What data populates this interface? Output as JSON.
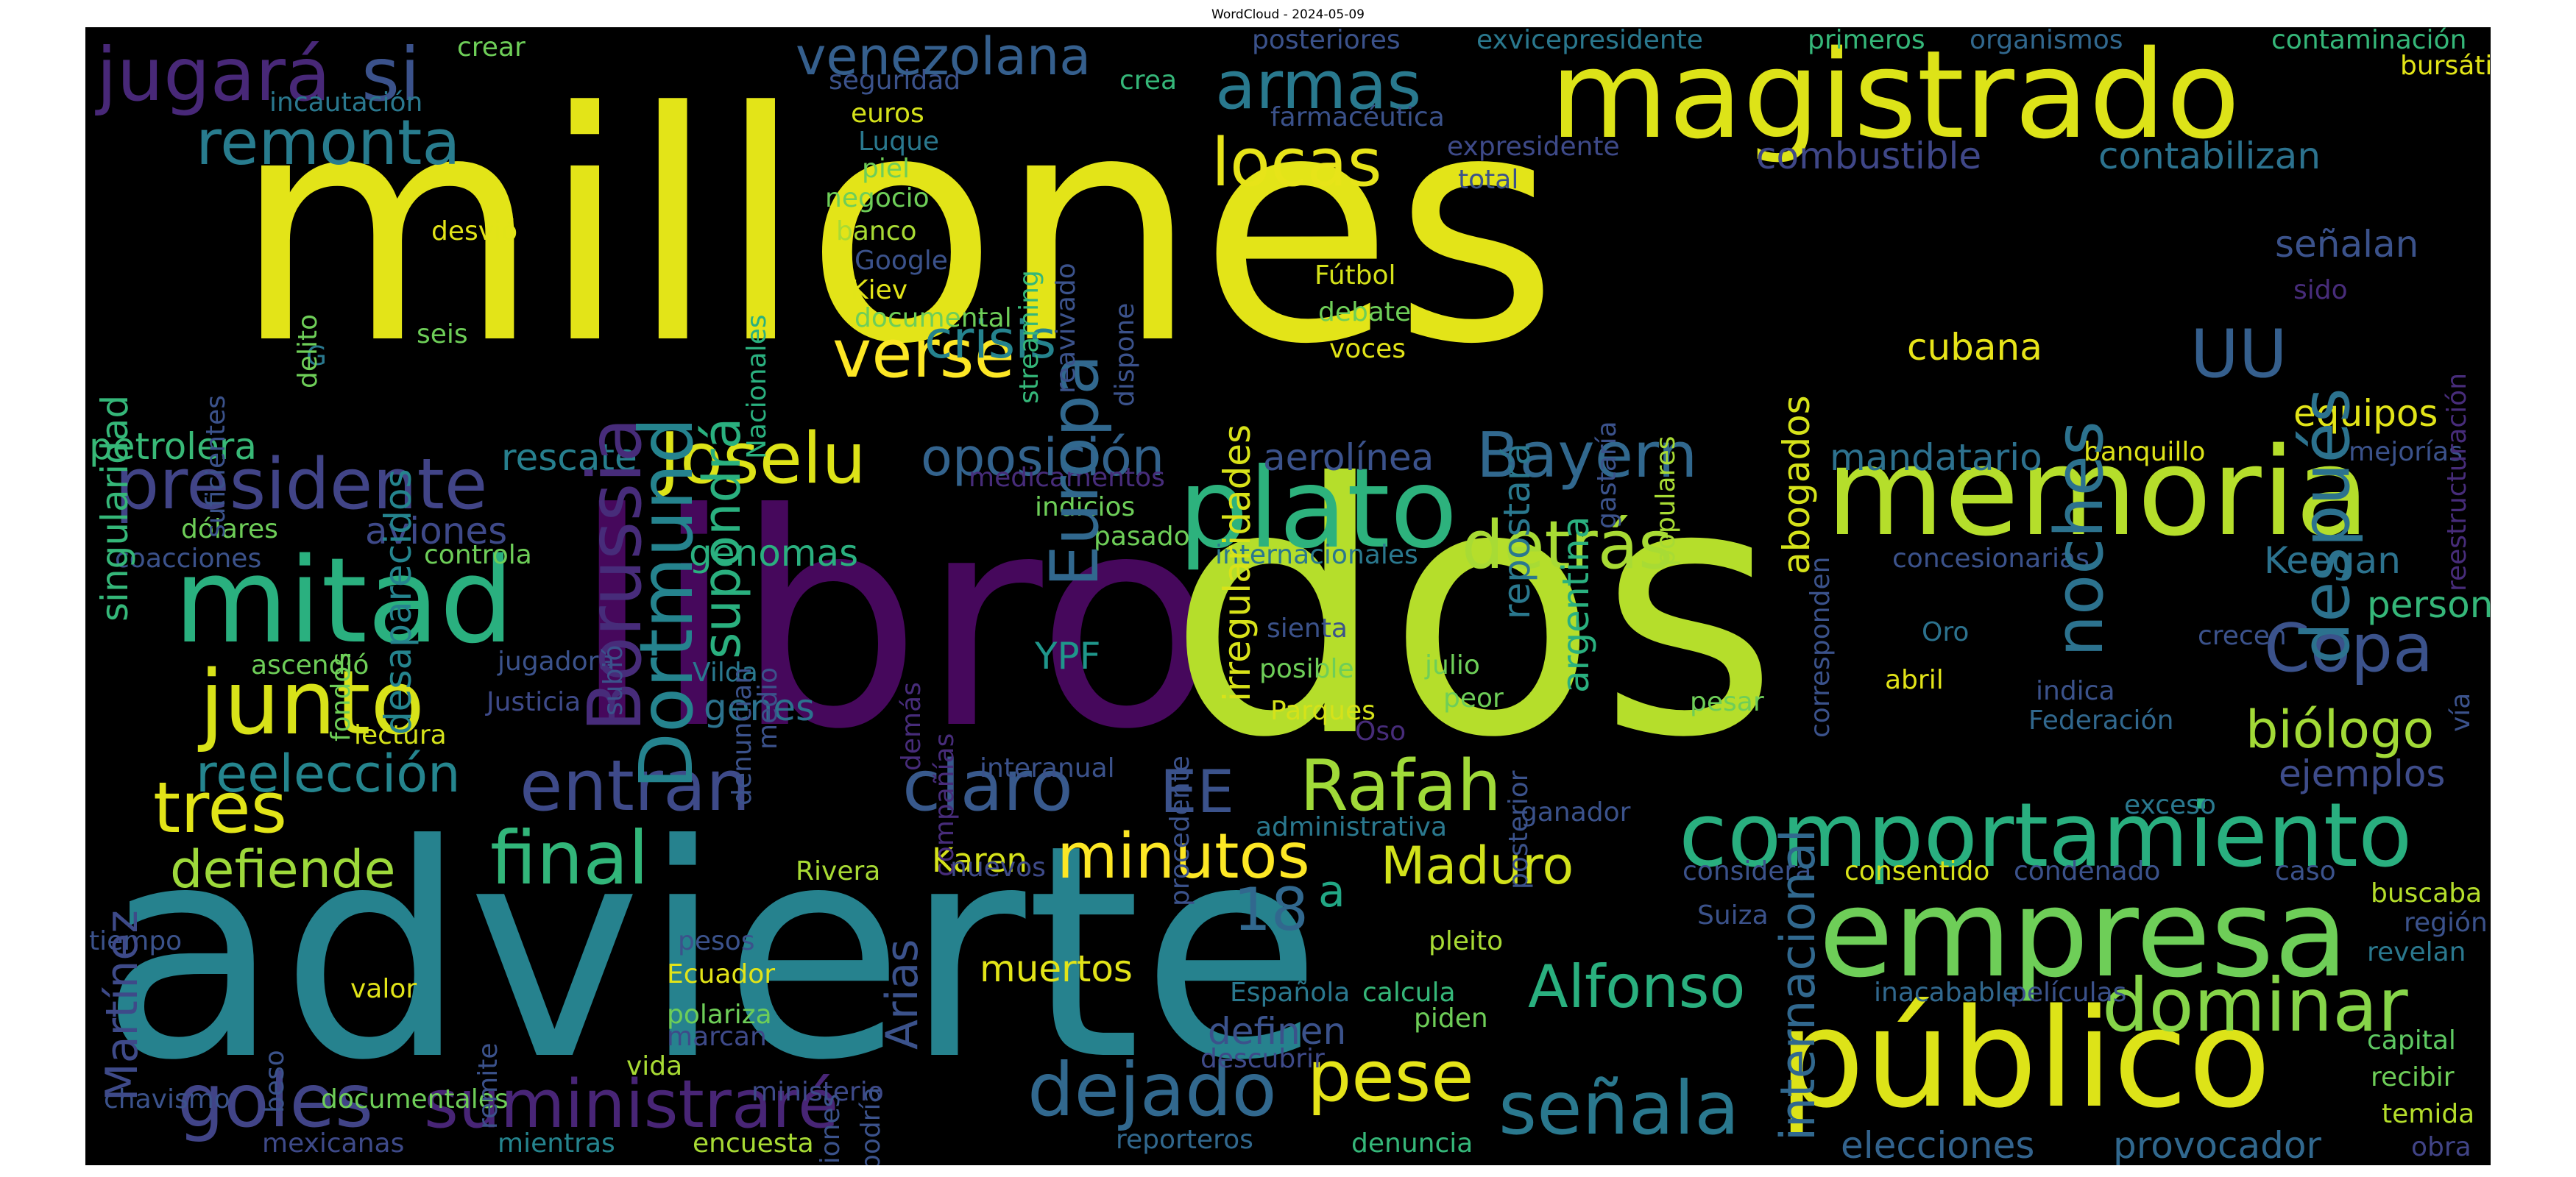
{
  "title": "WordCloud - 2024-05-09",
  "words": [
    {
      "t": "millones",
      "c": "#e3e418"
    },
    {
      "t": "libro",
      "c": "#46085c"
    },
    {
      "t": "dos",
      "c": "#b5de2b"
    },
    {
      "t": "advierte",
      "c": "#26828e"
    },
    {
      "t": "magistrado",
      "c": "#dde318"
    },
    {
      "t": "memoria",
      "c": "#b5de2b"
    },
    {
      "t": "comportamiento",
      "c": "#29af7f"
    },
    {
      "t": "empresa",
      "c": "#6ece58"
    },
    {
      "t": "público",
      "c": "#dde318"
    },
    {
      "t": "mitad",
      "c": "#2ab07f"
    },
    {
      "t": "junto",
      "c": "#d8e219"
    },
    {
      "t": "plato",
      "c": "#2db27d"
    },
    {
      "t": "presidente",
      "c": "#414487"
    },
    {
      "t": "Joselu",
      "c": "#dde318"
    },
    {
      "t": "Rafah",
      "c": "#a0da39"
    },
    {
      "t": "minutos",
      "c": "#fde725"
    },
    {
      "t": "dominar",
      "c": "#86d549"
    },
    {
      "t": "dejado",
      "c": "#31688e"
    },
    {
      "t": "señala",
      "c": "#2a788e"
    },
    {
      "t": "pese",
      "c": "#e5e419"
    },
    {
      "t": "final",
      "c": "#32b67a"
    },
    {
      "t": "entran",
      "c": "#3e4a89"
    },
    {
      "t": "claro",
      "c": "#38598c"
    },
    {
      "t": "goles",
      "c": "#414487"
    },
    {
      "t": "suministraré",
      "c": "#482576"
    },
    {
      "t": "detrás",
      "c": "#a8db34"
    },
    {
      "t": "Alfonso",
      "c": "#2ab07f"
    },
    {
      "t": "Copa",
      "c": "#3b528b"
    },
    {
      "t": "biólogo",
      "c": "#a2da37"
    },
    {
      "t": "tres",
      "c": "#e2e418"
    },
    {
      "t": "defiende",
      "c": "#9dd93b"
    },
    {
      "t": "reelección",
      "c": "#25858e"
    },
    {
      "t": "Bayern",
      "c": "#31688e"
    },
    {
      "t": "armas",
      "c": "#29798e"
    },
    {
      "t": "locas",
      "c": "#e7e419"
    },
    {
      "t": "verse",
      "c": "#fde725"
    },
    {
      "t": "oposición",
      "c": "#33638d"
    },
    {
      "t": "Maduro",
      "c": "#d2e21b"
    },
    {
      "t": "remonta",
      "c": "#287c8e"
    },
    {
      "t": "jugará",
      "c": "#482878"
    },
    {
      "t": "si",
      "c": "#3b528b"
    },
    {
      "t": "venezolana",
      "c": "#355f8d"
    },
    {
      "t": "crisis",
      "c": "#25838e"
    },
    {
      "t": "contabilizan",
      "c": "#2c728e"
    },
    {
      "t": "combustible",
      "c": "#3f4788"
    },
    {
      "t": "elecciones",
      "c": "#33638d"
    },
    {
      "t": "provocador",
      "c": "#31688e"
    },
    {
      "t": "Keegan",
      "c": "#2c728e"
    },
    {
      "t": "persona",
      "c": "#35b779"
    },
    {
      "t": "ejemplos",
      "c": "#3e4c8a"
    },
    {
      "t": "equipos",
      "c": "#e2e418"
    },
    {
      "t": "mandatario",
      "c": "#2d718e"
    },
    {
      "t": "cubana",
      "c": "#e7e419"
    },
    {
      "t": "señalan",
      "c": "#3b528b"
    },
    {
      "t": "genomas",
      "c": "#2ab07f"
    },
    {
      "t": "aviones",
      "c": "#3e4989"
    },
    {
      "t": "rescate",
      "c": "#277f8e"
    },
    {
      "t": "petrolera",
      "c": "#38b977"
    },
    {
      "t": "aerolínea",
      "c": "#3b528b"
    },
    {
      "t": "muertos",
      "c": "#e2e418"
    },
    {
      "t": "definen",
      "c": "#3b528b"
    },
    {
      "t": "genes",
      "c": "#2c728e"
    },
    {
      "t": "YPF",
      "c": "#1f968b"
    },
    {
      "t": "18",
      "c": "#31688e"
    },
    {
      "t": "a",
      "c": "#22a785"
    },
    {
      "t": "EE",
      "c": "#3b528b"
    },
    {
      "t": "UU",
      "c": "#355f8d"
    },
    {
      "t": "Karen",
      "c": "#d5e21a"
    },
    {
      "t": "documentales",
      "c": "#6ece58"
    },
    {
      "t": "chavismo",
      "c": "#3b528b"
    },
    {
      "t": "mexicanas",
      "c": "#3e4a89"
    },
    {
      "t": "mientras",
      "c": "#25848e"
    },
    {
      "t": "encuesta",
      "c": "#a8db34"
    },
    {
      "t": "reporteros",
      "c": "#31688e"
    },
    {
      "t": "denuncia",
      "c": "#35b779"
    },
    {
      "t": "obra",
      "c": "#414487"
    },
    {
      "t": "temida",
      "c": "#b5de2b"
    },
    {
      "t": "recibir",
      "c": "#6ece58"
    },
    {
      "t": "capital",
      "c": "#5ec962"
    },
    {
      "t": "películas",
      "c": "#3b528b"
    },
    {
      "t": "revelan",
      "c": "#2a788e"
    },
    {
      "t": "región",
      "c": "#3b528b"
    },
    {
      "t": "buscaba",
      "c": "#b5de2b"
    },
    {
      "t": "caso",
      "c": "#3b528b"
    },
    {
      "t": "condenado",
      "c": "#3b528b"
    },
    {
      "t": "consentido",
      "c": "#d8e219"
    },
    {
      "t": "considera",
      "c": "#3b528b"
    },
    {
      "t": "exceso",
      "c": "#2a788e"
    },
    {
      "t": "Suiza",
      "c": "#3b528b"
    },
    {
      "t": "inacabable",
      "c": "#31688e"
    },
    {
      "t": "pesar",
      "c": "#6ece58"
    },
    {
      "t": "Federación",
      "c": "#31688e"
    },
    {
      "t": "indica",
      "c": "#3b528b"
    },
    {
      "t": "abril",
      "c": "#e2e418"
    },
    {
      "t": "Oro",
      "c": "#2c728e"
    },
    {
      "t": "crecen",
      "c": "#3b528b"
    },
    {
      "t": "concesionarias",
      "c": "#3b528b"
    },
    {
      "t": "banquillo",
      "c": "#dde318"
    },
    {
      "t": "mejorías",
      "c": "#3b528b"
    },
    {
      "t": "ganador",
      "c": "#3b528b"
    },
    {
      "t": "administrativa",
      "c": "#2a788e"
    },
    {
      "t": "Oso",
      "c": "#472c7a"
    },
    {
      "t": "interanual",
      "c": "#3b528b"
    },
    {
      "t": "pleito",
      "c": "#a8db34"
    },
    {
      "t": "calcula",
      "c": "#35b779"
    },
    {
      "t": "piden",
      "c": "#6ece58"
    },
    {
      "t": "Española",
      "c": "#2a788e"
    },
    {
      "t": "descubrir",
      "c": "#3e4a89"
    },
    {
      "t": "Parques",
      "c": "#d5e21a"
    },
    {
      "t": "julio",
      "c": "#6ece58"
    },
    {
      "t": "peor",
      "c": "#6ece58"
    },
    {
      "t": "posible",
      "c": "#6ece58"
    },
    {
      "t": "sienta",
      "c": "#3b528b"
    },
    {
      "t": "internacionales",
      "c": "#2a788e"
    },
    {
      "t": "pasado",
      "c": "#6ece58"
    },
    {
      "t": "indicios",
      "c": "#6ece58"
    },
    {
      "t": "medicamentos",
      "c": "#472c7a"
    },
    {
      "t": "Vilda",
      "c": "#2a788e"
    },
    {
      "t": "Justicia",
      "c": "#3e4a89"
    },
    {
      "t": "jugadora",
      "c": "#3b528b"
    },
    {
      "t": "lectura",
      "c": "#d5e21a"
    },
    {
      "t": "ascendió",
      "c": "#6ece58"
    },
    {
      "t": "controla",
      "c": "#6ece58"
    },
    {
      "t": "coacciones",
      "c": "#3b528b"
    },
    {
      "t": "dólares",
      "c": "#6ece58"
    },
    {
      "t": "Rivera",
      "c": "#a8db34"
    },
    {
      "t": "nuevos",
      "c": "#3e4a89"
    },
    {
      "t": "Ecuador",
      "c": "#e2e418"
    },
    {
      "t": "polariza",
      "c": "#6ece58"
    },
    {
      "t": "marcan",
      "c": "#3e4a89"
    },
    {
      "t": "vida",
      "c": "#a8db34"
    },
    {
      "t": "ministerio",
      "c": "#3e4a89"
    },
    {
      "t": "valor",
      "c": "#e2e418"
    },
    {
      "t": "pesos",
      "c": "#3b528b"
    },
    {
      "t": "tiempo",
      "c": "#3b528b"
    },
    {
      "t": "Fútbol",
      "c": "#d5e21a"
    },
    {
      "t": "debate",
      "c": "#6ece58"
    },
    {
      "t": "voces",
      "c": "#e2e418"
    },
    {
      "t": "total",
      "c": "#3b528b"
    },
    {
      "t": "expresidente",
      "c": "#3e4a89"
    },
    {
      "t": "farmacéutica",
      "c": "#3b528b"
    },
    {
      "t": "posteriores",
      "c": "#3b528b"
    },
    {
      "t": "exvicepresidente",
      "c": "#2a788e"
    },
    {
      "t": "primeros",
      "c": "#35b779"
    },
    {
      "t": "organismos",
      "c": "#31688e"
    },
    {
      "t": "contaminación",
      "c": "#35b779"
    },
    {
      "t": "bursátil",
      "c": "#e2e418"
    },
    {
      "t": "crear",
      "c": "#6ece58"
    },
    {
      "t": "incautación",
      "c": "#2a788e"
    },
    {
      "t": "seguridad",
      "c": "#3b528b"
    },
    {
      "t": "crea",
      "c": "#35b779"
    },
    {
      "t": "euros",
      "c": "#d5e21a"
    },
    {
      "t": "Luque",
      "c": "#2a788e"
    },
    {
      "t": "piel",
      "c": "#6ece58"
    },
    {
      "t": "negocio",
      "c": "#6ece58"
    },
    {
      "t": "banco",
      "c": "#a8db34"
    },
    {
      "t": "Google",
      "c": "#3b528b"
    },
    {
      "t": "Kiev",
      "c": "#e2e418"
    },
    {
      "t": "documental",
      "c": "#6ece58"
    },
    {
      "t": "desvió",
      "c": "#e2e418"
    },
    {
      "t": "seis",
      "c": "#6ece58"
    },
    {
      "t": "G",
      "c": "#2a788e"
    },
    {
      "t": "sido",
      "c": "#472c7a"
    },
    {
      "t": "Arias",
      "c": "#3b528b"
    },
    {
      "t": "Martínez",
      "c": "#3e4a89"
    },
    {
      "t": "Borussia",
      "c": "#472c7a"
    },
    {
      "t": "Dortmund",
      "c": "#25838e"
    },
    {
      "t": "supondrá",
      "c": "#2ab07f"
    },
    {
      "t": "Europa",
      "c": "#31688e"
    },
    {
      "t": "noches",
      "c": "#2c728e"
    },
    {
      "t": "después",
      "c": "#2c728e"
    },
    {
      "t": "internacional",
      "c": "#31688e"
    },
    {
      "t": "abogados",
      "c": "#d5e21a"
    },
    {
      "t": "irregularidades",
      "c": "#d8e219"
    },
    {
      "t": "repostará",
      "c": "#2a788e"
    },
    {
      "t": "argentina",
      "c": "#2ab07f"
    },
    {
      "t": "gastaría",
      "c": "#3b528b"
    },
    {
      "t": "populares",
      "c": "#a8db34"
    },
    {
      "t": "corresponden",
      "c": "#3b528b"
    },
    {
      "t": "singularidad",
      "c": "#35b779"
    },
    {
      "t": "desaparecidos",
      "c": "#25848e"
    },
    {
      "t": "suficientes",
      "c": "#3b528b"
    },
    {
      "t": "delito",
      "c": "#6ece58"
    },
    {
      "t": "Nacionales",
      "c": "#2ab07f"
    },
    {
      "t": "streaming",
      "c": "#35b779"
    },
    {
      "t": "reavivado",
      "c": "#3b528b"
    },
    {
      "t": "dispone",
      "c": "#3b528b"
    },
    {
      "t": "denuncian",
      "c": "#3b528b"
    },
    {
      "t": "medio",
      "c": "#3b528b"
    },
    {
      "t": "compañías",
      "c": "#472c7a"
    },
    {
      "t": "demás",
      "c": "#472c7a"
    },
    {
      "t": "subió",
      "c": "#3b528b"
    },
    {
      "t": "fondos",
      "c": "#6ece58"
    },
    {
      "t": "procedente",
      "c": "#3b528b"
    },
    {
      "t": "posterior",
      "c": "#3b528b"
    },
    {
      "t": "acciones",
      "c": "#3b528b"
    },
    {
      "t": "podría",
      "c": "#3b528b"
    },
    {
      "t": "remite",
      "c": "#3b528b"
    },
    {
      "t": "beso",
      "c": "#3b528b"
    },
    {
      "t": "reestructuración",
      "c": "#472c7a"
    },
    {
      "t": "vía",
      "c": "#3b528b"
    }
  ]
}
